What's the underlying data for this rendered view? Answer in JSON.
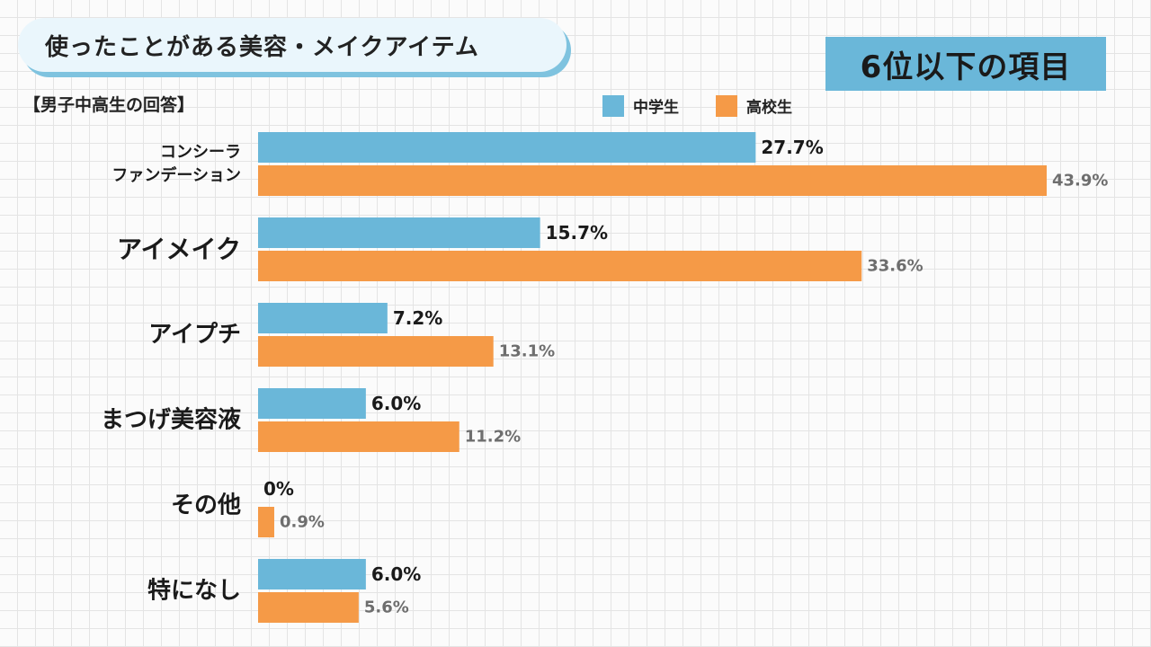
{
  "title": "使ったことがある美容・メイクアイテム",
  "badge": "6位以下の項目",
  "subtitle": "【男子中高生の回答】",
  "colors": {
    "middle": "#6ab7d9",
    "high": "#f59a47",
    "accent_shadow": "#7fc3df"
  },
  "chart_data": {
    "type": "bar",
    "orientation": "horizontal",
    "categories": [
      [
        "コンシーラ",
        "ファンデーション"
      ],
      [
        "アイメイク"
      ],
      [
        "アイプチ"
      ],
      [
        "まつげ美容液"
      ],
      [
        "その他"
      ],
      [
        "特になし"
      ]
    ],
    "series": [
      {
        "name": "中学生",
        "color": "#6ab7d9",
        "values": [
          27.7,
          15.7,
          7.2,
          6.0,
          0,
          6.0
        ],
        "labels": [
          "27.7%",
          "15.7%",
          "7.2%",
          "6.0%",
          "0%",
          "6.0%"
        ]
      },
      {
        "name": "高校生",
        "color": "#f59a47",
        "values": [
          43.9,
          33.6,
          13.1,
          11.2,
          0.9,
          5.6
        ],
        "labels": [
          "43.9%",
          "33.6%",
          "13.1%",
          "11.2%",
          "0.9%",
          "5.6%"
        ]
      }
    ],
    "xlim": [
      0,
      43.9
    ],
    "legend": "top"
  }
}
